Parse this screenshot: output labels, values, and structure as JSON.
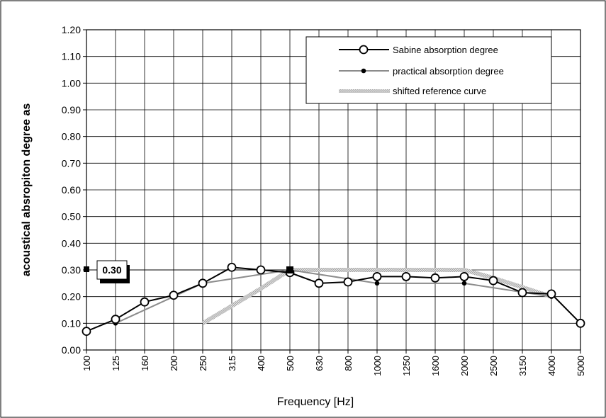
{
  "chart_data": {
    "type": "line",
    "xlabel": "Frequency  [Hz]",
    "ylabel": "acoustical absropiton degree as",
    "categories": [
      "100",
      "125",
      "160",
      "200",
      "250",
      "315",
      "400",
      "500",
      "630",
      "800",
      "1000",
      "1250",
      "1600",
      "2000",
      "2500",
      "3150",
      "4000",
      "5000"
    ],
    "ylim": [
      0,
      1.2
    ],
    "yticks": [
      "0.00",
      "0.10",
      "0.20",
      "0.30",
      "0.40",
      "0.50",
      "0.60",
      "0.70",
      "0.80",
      "0.90",
      "1.00",
      "1.10",
      "1.20"
    ],
    "grid": true,
    "legend_position": "top-right",
    "series": [
      {
        "name": "Sabine absorption degree",
        "values": [
          0.07,
          0.115,
          0.18,
          0.205,
          0.25,
          0.31,
          0.3,
          0.29,
          0.25,
          0.255,
          0.275,
          0.275,
          0.27,
          0.275,
          0.26,
          0.215,
          0.21,
          0.1
        ]
      },
      {
        "name": "practical absorption degree",
        "values": [
          null,
          0.1,
          null,
          0.2,
          0.25,
          null,
          null,
          0.3,
          null,
          null,
          0.25,
          null,
          null,
          0.25,
          null,
          null,
          0.2,
          null
        ]
      },
      {
        "name": "shifted reference curve",
        "values": [
          null,
          null,
          null,
          null,
          0.1,
          0.165,
          0.23,
          0.3,
          0.3,
          0.3,
          0.3,
          0.3,
          0.3,
          0.3,
          0.27,
          0.235,
          0.2,
          null
        ]
      }
    ],
    "reference_marker": {
      "label": "0.30",
      "value": 0.3,
      "at_category": "500"
    }
  }
}
